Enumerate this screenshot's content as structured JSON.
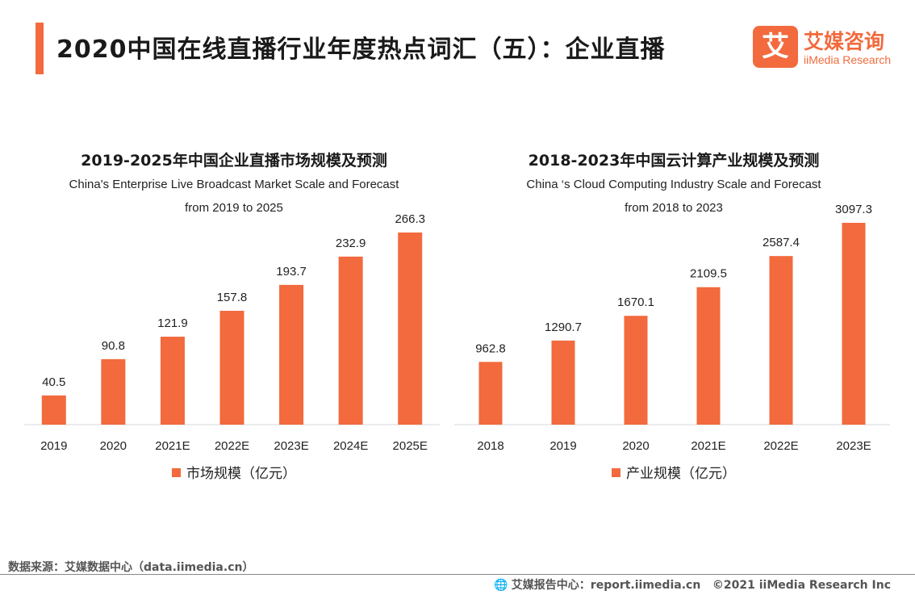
{
  "header": {
    "title": "2020中国在线直播行业年度热点词汇（五）：企业直播",
    "logo_glyph": "艾",
    "logo_cn": "艾媒咨询",
    "logo_en": "iiMedia Research"
  },
  "colors": {
    "accent": "#f26a3d",
    "bar": "#f26a3d",
    "axis": "#d9d9d9"
  },
  "chart_data": [
    {
      "type": "bar",
      "title": "2019-2025年中国企业直播市场规模及预测",
      "subtitle_line1": "China's Enterprise Live Broadcast Market Scale and Forecast",
      "subtitle_line2": "from 2019 to 2025",
      "categories": [
        "2019",
        "2020",
        "2021E",
        "2022E",
        "2023E",
        "2024E",
        "2025E"
      ],
      "values": [
        40.5,
        90.8,
        121.9,
        157.8,
        193.7,
        232.9,
        266.3
      ],
      "value_labels": [
        "40.5",
        "90.8",
        "121.9",
        "157.8",
        "193.7",
        "232.9",
        "266.3"
      ],
      "series_name": "市场规模（亿元）",
      "ylim": [
        0,
        266.3
      ],
      "grid": false,
      "legend": "bottom-center"
    },
    {
      "type": "bar",
      "title": "2018-2023年中国云计算产业规模及预测",
      "subtitle_line1": "China ‘s Cloud Computing Industry Scale and Forecast",
      "subtitle_line2": "from 2018 to 2023",
      "categories": [
        "2018",
        "2019",
        "2020",
        "2021E",
        "2022E",
        "2023E"
      ],
      "values": [
        962.8,
        1290.7,
        1670.1,
        2109.5,
        2587.4,
        3097.3
      ],
      "value_labels": [
        "962.8",
        "1290.7",
        "1670.1",
        "2109.5",
        "2587.4",
        "3097.3"
      ],
      "series_name": "产业规模（亿元）",
      "ylim": [
        0,
        3097.3
      ],
      "grid": false,
      "legend": "bottom-center"
    }
  ],
  "footer": {
    "source": "数据来源：艾媒数据中心（data.iimedia.cn）",
    "report": "艾媒报告中心：report.iimedia.cn",
    "copyright": "©2021  iiMedia Research  Inc"
  }
}
